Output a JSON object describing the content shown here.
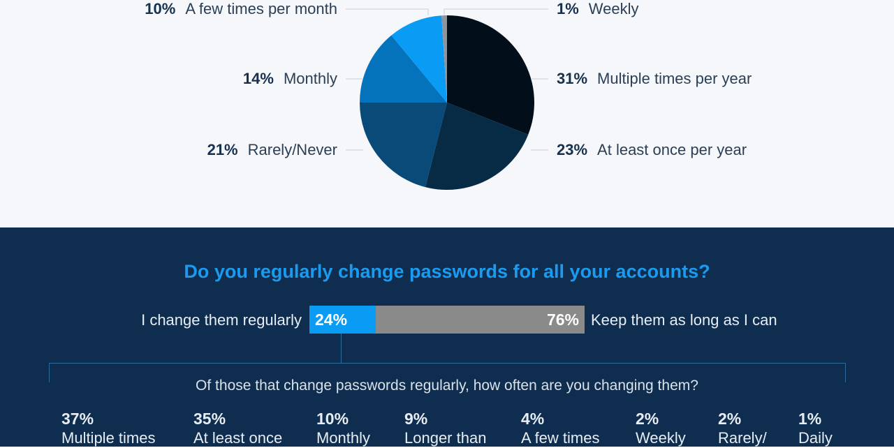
{
  "chart_data": [
    {
      "type": "pie",
      "start": "top",
      "direction": "clockwise",
      "slices": [
        {
          "label": "Multiple times per year",
          "value": 31,
          "color": "#020f1a",
          "side": "right"
        },
        {
          "label": "At least once per year",
          "value": 23,
          "color": "#072a45",
          "side": "right"
        },
        {
          "label": "Rarely/Never",
          "value": 21,
          "color": "#0a4a78",
          "side": "left"
        },
        {
          "label": "Monthly",
          "value": 14,
          "color": "#0573bc",
          "side": "left"
        },
        {
          "label": "A few times per month",
          "value": 10,
          "color": "#0a9cf5",
          "side": "left"
        },
        {
          "label": "Weekly",
          "value": 1,
          "color": "#8f959b",
          "side": "right"
        }
      ]
    },
    {
      "type": "bar",
      "orientation": "horizontal",
      "stacked": true,
      "title": "Do you regularly change passwords for all your accounts?",
      "series": [
        {
          "name": "I change them regularly",
          "value": 24,
          "color": "#0a9cf5"
        },
        {
          "name": "Keep them as long as I can",
          "value": 76,
          "color": "#8a8a8a"
        }
      ]
    },
    {
      "type": "table",
      "title": "Of those that change passwords regularly, how often are you changing them?",
      "items": [
        {
          "value": "37%",
          "label": "Multiple times"
        },
        {
          "value": "35%",
          "label": "At least once"
        },
        {
          "value": "10%",
          "label": "Monthly"
        },
        {
          "value": "9%",
          "label": "Longer than"
        },
        {
          "value": "4%",
          "label": "A few times"
        },
        {
          "value": "2%",
          "label": "Weekly"
        },
        {
          "value": "2%",
          "label": "Rarely/"
        },
        {
          "value": "1%",
          "label": "Daily"
        }
      ]
    }
  ]
}
